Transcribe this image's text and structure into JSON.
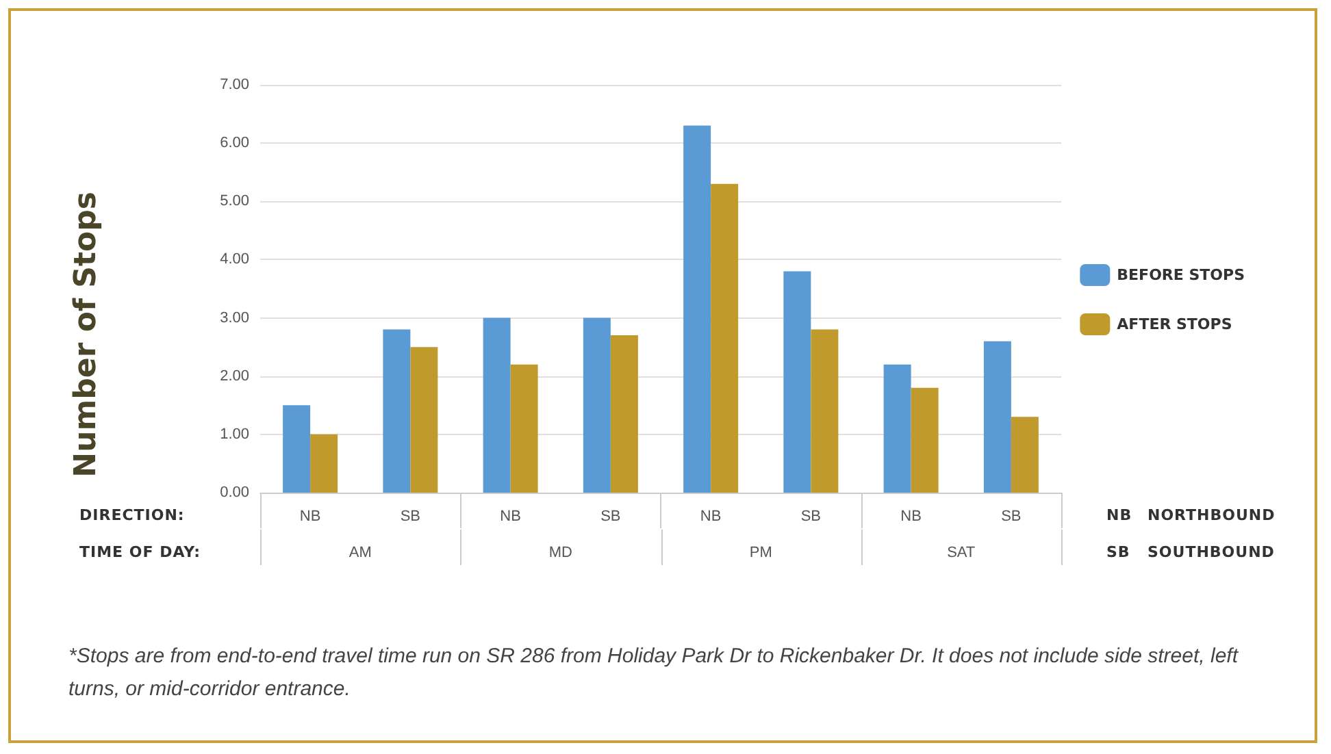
{
  "chart_data": {
    "type": "bar",
    "ylabel": "Number of Stops",
    "categories": [
      "NB",
      "SB",
      "NB",
      "SB",
      "NB",
      "SB",
      "NB",
      "SB"
    ],
    "series": [
      {
        "name": "BEFORE STOPS",
        "color": "#5b9bd5",
        "values": [
          1.5,
          2.8,
          3.0,
          3.0,
          6.3,
          3.8,
          2.2,
          2.6
        ]
      },
      {
        "name": "AFTER STOPS",
        "color": "#c09a2c",
        "values": [
          1.0,
          2.5,
          2.2,
          2.7,
          5.3,
          2.8,
          1.8,
          1.3
        ]
      }
    ],
    "ylim": [
      0,
      7
    ],
    "yticks": [
      {
        "value": 0,
        "label": "0.00"
      },
      {
        "value": 1,
        "label": "1.00"
      },
      {
        "value": 2,
        "label": "2.00"
      },
      {
        "value": 3,
        "label": "3.00"
      },
      {
        "value": 4,
        "label": "4.00"
      },
      {
        "value": 5,
        "label": "5.00"
      },
      {
        "value": 6,
        "label": "6.00"
      },
      {
        "value": 7,
        "label": "7.00"
      }
    ],
    "grid": "y",
    "legend": "right",
    "annotations": [
      "DIRECTION:",
      "TIME OF DAY:",
      "AM",
      "MD",
      "PM",
      "SAT",
      "NB",
      "NORTHBOUND",
      "SB",
      "SOUTHBOUND",
      "*Stops are from end-to-end travel time run on SR 286 from Holiday Park Dr to Rickenbaker Dr. It does not include side street, left turns, or mid-corridor entrance."
    ]
  }
}
